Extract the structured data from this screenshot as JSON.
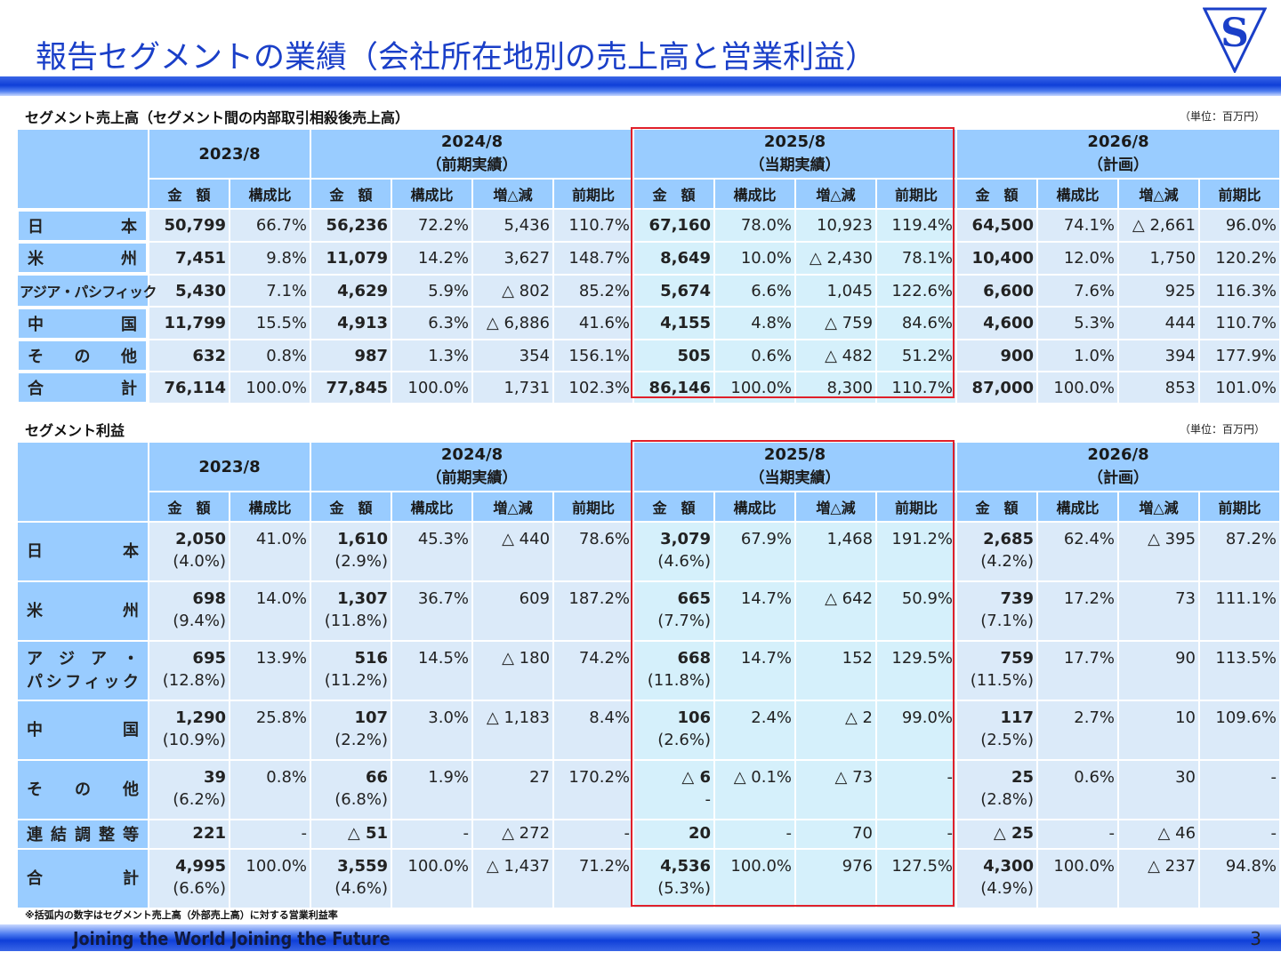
{
  "header": {
    "title": "報告セグメントの業績（会社所在地別の売上高と営業利益）",
    "logo_letter": "S"
  },
  "sales": {
    "title": "セグメント売上高（セグメント間の内部取引相殺後売上高）",
    "unit": "（単位：百万円）",
    "periods": [
      {
        "year": "2023/8",
        "note": ""
      },
      {
        "year": "2024/8",
        "note": "（前期実績）"
      },
      {
        "year": "2025/8",
        "note": "（当期実績）"
      },
      {
        "year": "2026/8",
        "note": "（計画）"
      }
    ],
    "subheaders": {
      "amount": "金　額",
      "ratio": "構成比",
      "change": "増△減",
      "yoy": "前期比"
    },
    "rows": [
      {
        "name": "日　本",
        "cells": [
          "50,799",
          "66.7%",
          "56,236",
          "72.2%",
          "5,436",
          "110.7%",
          "67,160",
          "78.0%",
          "10,923",
          "119.4%",
          "64,500",
          "74.1%",
          "△ 2,661",
          "96.0%"
        ]
      },
      {
        "name": "米　州",
        "cells": [
          "7,451",
          "9.8%",
          "11,079",
          "14.2%",
          "3,627",
          "148.7%",
          "8,649",
          "10.0%",
          "△ 2,430",
          "78.1%",
          "10,400",
          "12.0%",
          "1,750",
          "120.2%"
        ]
      },
      {
        "name": "アジア・パシフィック",
        "cells": [
          "5,430",
          "7.1%",
          "4,629",
          "5.9%",
          "△ 802",
          "85.2%",
          "5,674",
          "6.6%",
          "1,045",
          "122.6%",
          "6,600",
          "7.6%",
          "925",
          "116.3%"
        ]
      },
      {
        "name": "中　国",
        "cells": [
          "11,799",
          "15.5%",
          "4,913",
          "6.3%",
          "△ 6,886",
          "41.6%",
          "4,155",
          "4.8%",
          "△ 759",
          "84.6%",
          "4,600",
          "5.3%",
          "444",
          "110.7%"
        ]
      },
      {
        "name": "そ　の　他",
        "cells": [
          "632",
          "0.8%",
          "987",
          "1.3%",
          "354",
          "156.1%",
          "505",
          "0.6%",
          "△ 482",
          "51.2%",
          "900",
          "1.0%",
          "394",
          "177.9%"
        ]
      },
      {
        "name": "合　計",
        "cells": [
          "76,114",
          "100.0%",
          "77,845",
          "100.0%",
          "1,731",
          "102.3%",
          "86,146",
          "100.0%",
          "8,300",
          "110.7%",
          "87,000",
          "100.0%",
          "853",
          "101.0%"
        ]
      }
    ]
  },
  "profit": {
    "title": "セグメント利益",
    "unit": "（単位：百万円）",
    "periods": [
      {
        "year": "2023/8",
        "note": ""
      },
      {
        "year": "2024/8",
        "note": "（前期実績）"
      },
      {
        "year": "2025/8",
        "note": "（当期実績）"
      },
      {
        "year": "2026/8",
        "note": "（計画）"
      }
    ],
    "subheaders": {
      "amount": "金　額",
      "ratio": "構成比",
      "change": "増△減",
      "yoy": "前期比"
    },
    "rows": [
      {
        "name": [
          "日　本"
        ],
        "amounts": [
          [
            "2,050",
            "(4.0%)"
          ],
          [
            "1,610",
            "(2.9%)"
          ],
          [
            "3,079",
            "(4.6%)"
          ],
          [
            "2,685",
            "(4.2%)"
          ]
        ],
        "others": [
          "41.0%",
          "45.3%",
          "△ 440",
          "78.6%",
          "67.9%",
          "1,468",
          "191.2%",
          "62.4%",
          "△ 395",
          "87.2%"
        ]
      },
      {
        "name": [
          "米　州"
        ],
        "amounts": [
          [
            "698",
            "(9.4%)"
          ],
          [
            "1,307",
            "(11.8%)"
          ],
          [
            "665",
            "(7.7%)"
          ],
          [
            "739",
            "(7.1%)"
          ]
        ],
        "others": [
          "14.0%",
          "36.7%",
          "609",
          "187.2%",
          "14.7%",
          "△ 642",
          "50.9%",
          "17.2%",
          "73",
          "111.1%"
        ]
      },
      {
        "name": [
          "ア　ジ　ア　・",
          "パ シ フ ィ ッ ク"
        ],
        "amounts": [
          [
            "695",
            "(12.8%)"
          ],
          [
            "516",
            "(11.2%)"
          ],
          [
            "668",
            "(11.8%)"
          ],
          [
            "759",
            "(11.5%)"
          ]
        ],
        "others": [
          "13.9%",
          "14.5%",
          "△ 180",
          "74.2%",
          "14.7%",
          "152",
          "129.5%",
          "17.7%",
          "90",
          "113.5%"
        ]
      },
      {
        "name": [
          "中　国"
        ],
        "amounts": [
          [
            "1,290",
            "(10.9%)"
          ],
          [
            "107",
            "(2.2%)"
          ],
          [
            "106",
            "(2.6%)"
          ],
          [
            "117",
            "(2.5%)"
          ]
        ],
        "others": [
          "25.8%",
          "3.0%",
          "△ 1,183",
          "8.4%",
          "2.4%",
          "△ 2",
          "99.0%",
          "2.7%",
          "10",
          "109.6%"
        ]
      },
      {
        "name": [
          "そ　の　他"
        ],
        "amounts": [
          [
            "39",
            "(6.2%)"
          ],
          [
            "66",
            "(6.8%)"
          ],
          [
            "△ 6",
            "-"
          ],
          [
            "25",
            "(2.8%)"
          ]
        ],
        "others": [
          "0.8%",
          "1.9%",
          "27",
          "170.2%",
          "△ 0.1%",
          "△ 73",
          "-",
          "0.6%",
          "30",
          "-"
        ]
      },
      {
        "name": [
          "連 結 調 整 等"
        ],
        "amounts": [
          [
            "221",
            ""
          ],
          [
            "△ 51",
            ""
          ],
          [
            "20",
            ""
          ],
          [
            "△ 25",
            ""
          ]
        ],
        "others": [
          "-",
          "-",
          "△ 272",
          "-",
          "-",
          "70",
          "-",
          "-",
          "△ 46",
          "-"
        ]
      },
      {
        "name": [
          "合　計"
        ],
        "amounts": [
          [
            "4,995",
            "(6.6%)"
          ],
          [
            "3,559",
            "(4.6%)"
          ],
          [
            "4,536",
            "(5.3%)"
          ],
          [
            "4,300",
            "(4.9%)"
          ]
        ],
        "others": [
          "100.0%",
          "100.0%",
          "△ 1,437",
          "71.2%",
          "100.0%",
          "976",
          "127.5%",
          "100.0%",
          "△ 237",
          "94.8%"
        ]
      }
    ]
  },
  "footnote": "※括弧内の数字はセグメント売上高（外部売上高）に対する営業利益率",
  "footer": {
    "slogan": "Joining the World  Joining the Future",
    "page_number": "3"
  },
  "colors": {
    "title": "#1a3fc8",
    "header_cell": "#99ccff",
    "data_cell": "#dbeaf9",
    "highlight_cell": "#d5f0fb",
    "highlight_border": "#e0202a"
  }
}
